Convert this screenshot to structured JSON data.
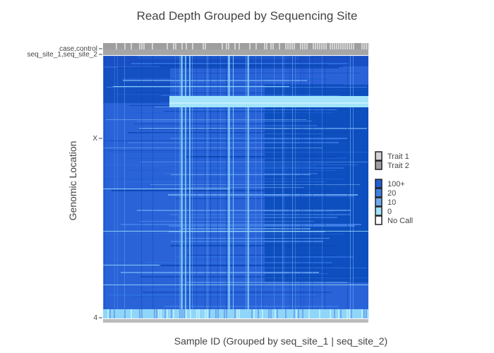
{
  "chart_data": {
    "type": "heatmap",
    "title": "Read Depth Grouped by Sequencing Site",
    "xlabel": "Sample ID (Grouped by seq_site_1 | seq_site_2)",
    "ylabel": "Genomic Location",
    "annotation_rows": [
      "case,control",
      "seq_site_1,seq_site_2"
    ],
    "y_ticks": [
      "X",
      "4"
    ],
    "trait_legend": [
      {
        "label": "Trait 1",
        "color": "#d3d3d3"
      },
      {
        "label": "Trait 2",
        "color": "#9e9e9e"
      }
    ],
    "depth_legend": [
      {
        "label": "100+",
        "color": "#1f5fd6"
      },
      {
        "label": "20",
        "color": "#3f7fe6"
      },
      {
        "label": "10",
        "color": "#6fa8f0"
      },
      {
        "label": "0",
        "color": "#9fe3fb"
      },
      {
        "label": "No Call",
        "color": "#ffffff"
      }
    ],
    "seq_site_2_color": "#a6a6a6",
    "base_fill_color": "#2a63d8",
    "dark_band_color": "#0e4fbf",
    "light_band_color": "#a3e4fa"
  }
}
